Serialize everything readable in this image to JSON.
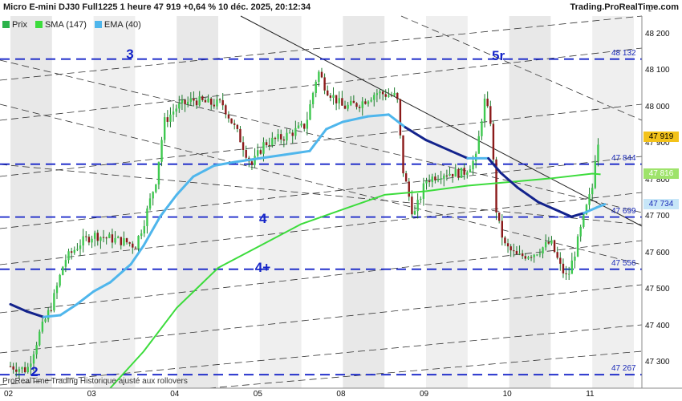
{
  "header": {
    "title": "Micro E-mini DJ30 Full1225 1 heure 47 919 +0,64 % 10 déc. 2025, 20:12:34",
    "source": "Trading.ProRealTime.com"
  },
  "legend": [
    {
      "label": "Prix",
      "color": "#2bb34b",
      "icon": "price-swatch-icon"
    },
    {
      "label": "SMA (147)",
      "color": "#3cdc3c",
      "icon": "sma-swatch-icon"
    },
    {
      "label": "EMA (40)",
      "color": "#4fb6ec",
      "icon": "ema-swatch-icon"
    }
  ],
  "footer": "ProRealTime Trading  Historique ajusté aux rollovers",
  "waves": [
    {
      "label": "2",
      "date_pos": 0.3,
      "price": 47270
    },
    {
      "label": "3",
      "date_pos": 1.45,
      "price": 48140
    },
    {
      "label": "4",
      "date_pos": 3.05,
      "price": 47690
    },
    {
      "label": "4+",
      "date_pos": 3.0,
      "price": 47555
    },
    {
      "label": "5r",
      "date_pos": 5.85,
      "price": 48135
    }
  ],
  "price_badges": [
    {
      "value": "47 919",
      "price": 47919,
      "bg": "#f3c21a",
      "fg": "#000000"
    },
    {
      "value": "47 816",
      "price": 47816,
      "bg": "#9ee36b",
      "fg": "#ffffff"
    },
    {
      "value": "47 734",
      "price": 47734,
      "bg": "#c7e6f8",
      "fg": "#1a2ab8"
    }
  ],
  "chart_data": {
    "type": "candlestick",
    "ylim": [
      47230,
      48250
    ],
    "y_ticks": [
      "48 200",
      "48 100",
      "48 000",
      "47 900",
      "47 800",
      "47 700",
      "47 600",
      "47 500",
      "47 400",
      "47 300"
    ],
    "y_tick_values": [
      48200,
      48100,
      48000,
      47900,
      47800,
      47700,
      47600,
      47500,
      47400,
      47300
    ],
    "x_ticks": [
      "02",
      "03",
      "04",
      "05",
      "08",
      "09",
      "10",
      "11"
    ],
    "x_tick_positions": [
      0,
      1,
      2,
      3,
      4,
      5,
      6,
      7
    ],
    "horizontal_levels": [
      {
        "label": "48 132",
        "value": 48132
      },
      {
        "label": "47 844",
        "value": 47844
      },
      {
        "label": "47 699",
        "value": 47699
      },
      {
        "label": "47 556",
        "value": 47556
      },
      {
        "label": "47 267",
        "value": 47267
      }
    ],
    "price_path": [
      [
        0.0,
        47290
      ],
      [
        0.2,
        47280
      ],
      [
        0.35,
        47380
      ],
      [
        0.5,
        47460
      ],
      [
        0.65,
        47580
      ],
      [
        0.85,
        47630
      ],
      [
        1.0,
        47650
      ],
      [
        1.2,
        47640
      ],
      [
        1.4,
        47630
      ],
      [
        1.5,
        47620
      ],
      [
        1.6,
        47680
      ],
      [
        1.75,
        47800
      ],
      [
        1.85,
        47960
      ],
      [
        2.0,
        48000
      ],
      [
        2.2,
        48020
      ],
      [
        2.4,
        48010
      ],
      [
        2.55,
        48010
      ],
      [
        2.75,
        47920
      ],
      [
        2.9,
        47840
      ],
      [
        3.05,
        47900
      ],
      [
        3.3,
        47920
      ],
      [
        3.55,
        47950
      ],
      [
        3.7,
        48100
      ],
      [
        3.8,
        48050
      ],
      [
        4.0,
        48000
      ],
      [
        4.2,
        48010
      ],
      [
        4.4,
        48040
      ],
      [
        4.65,
        48030
      ],
      [
        4.72,
        47830
      ],
      [
        4.85,
        47700
      ],
      [
        5.0,
        47800
      ],
      [
        5.2,
        47820
      ],
      [
        5.45,
        47820
      ],
      [
        5.6,
        47860
      ],
      [
        5.7,
        48020
      ],
      [
        5.78,
        47960
      ],
      [
        5.85,
        47700
      ],
      [
        5.95,
        47620
      ],
      [
        6.1,
        47590
      ],
      [
        6.3,
        47600
      ],
      [
        6.5,
        47630
      ],
      [
        6.62,
        47560
      ],
      [
        6.7,
        47530
      ],
      [
        6.8,
        47610
      ],
      [
        6.9,
        47700
      ],
      [
        7.0,
        47780
      ],
      [
        7.05,
        47900
      ],
      [
        7.1,
        47919
      ]
    ],
    "sma_147": [
      [
        1.2,
        47230
      ],
      [
        1.6,
        47330
      ],
      [
        2.0,
        47450
      ],
      [
        2.5,
        47560
      ],
      [
        3.0,
        47620
      ],
      [
        3.5,
        47680
      ],
      [
        4.0,
        47720
      ],
      [
        4.5,
        47760
      ],
      [
        5.0,
        47770
      ],
      [
        5.5,
        47785
      ],
      [
        6.0,
        47795
      ],
      [
        6.5,
        47805
      ],
      [
        7.0,
        47818
      ],
      [
        7.1,
        47816
      ]
    ],
    "ema_40": [
      [
        0.0,
        47460
      ],
      [
        0.2,
        47440
      ],
      [
        0.4,
        47425
      ],
      [
        0.6,
        47430
      ],
      [
        0.8,
        47460
      ],
      [
        1.0,
        47495
      ],
      [
        1.2,
        47520
      ],
      [
        1.45,
        47570
      ],
      [
        1.6,
        47620
      ],
      [
        1.8,
        47700
      ],
      [
        2.0,
        47760
      ],
      [
        2.2,
        47810
      ],
      [
        2.45,
        47840
      ],
      [
        2.7,
        47850
      ],
      [
        3.0,
        47860
      ],
      [
        3.3,
        47870
      ],
      [
        3.6,
        47880
      ],
      [
        3.8,
        47940
      ],
      [
        4.0,
        47960
      ],
      [
        4.3,
        47975
      ],
      [
        4.55,
        47980
      ],
      [
        4.75,
        47945
      ],
      [
        5.0,
        47910
      ],
      [
        5.3,
        47880
      ],
      [
        5.5,
        47860
      ],
      [
        5.75,
        47860
      ],
      [
        5.9,
        47820
      ],
      [
        6.1,
        47780
      ],
      [
        6.35,
        47740
      ],
      [
        6.6,
        47715
      ],
      [
        6.75,
        47700
      ],
      [
        6.9,
        47710
      ],
      [
        7.05,
        47725
      ],
      [
        7.15,
        47734
      ]
    ],
    "grid": true
  }
}
